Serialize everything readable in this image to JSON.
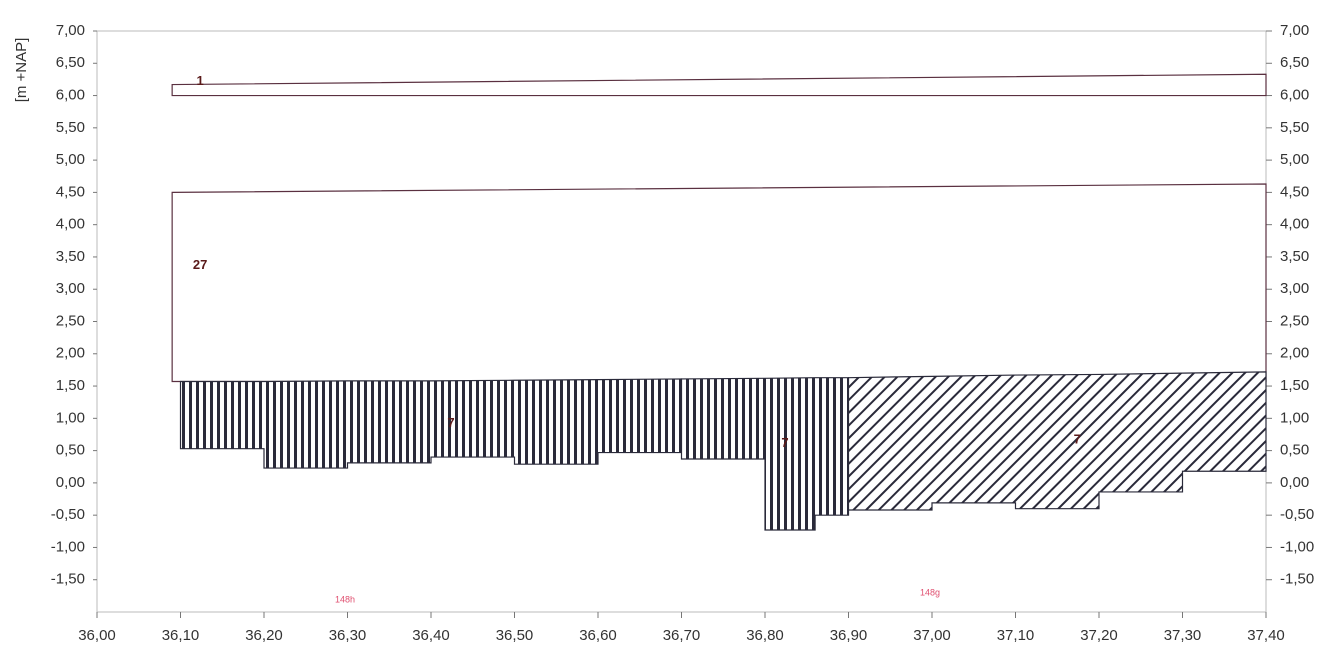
{
  "chart_data": {
    "type": "profile",
    "y_label": "[m +NAP]",
    "xlim": [
      36.0,
      37.4
    ],
    "ylim": [
      -2.0,
      7.0
    ],
    "y2lim": [
      -2.0,
      7.0
    ],
    "xticks": [
      {
        "value": 36.0,
        "label": "36,00"
      },
      {
        "value": 36.1,
        "label": "36,10"
      },
      {
        "value": 36.2,
        "label": "36,20"
      },
      {
        "value": 36.3,
        "label": "36,30"
      },
      {
        "value": 36.4,
        "label": "36,40"
      },
      {
        "value": 36.5,
        "label": "36,50"
      },
      {
        "value": 36.6,
        "label": "36,60"
      },
      {
        "value": 36.7,
        "label": "36,70"
      },
      {
        "value": 36.8,
        "label": "36,80"
      },
      {
        "value": 36.9,
        "label": "36,90"
      },
      {
        "value": 37.0,
        "label": "37,00"
      },
      {
        "value": 37.1,
        "label": "37,10"
      },
      {
        "value": 37.2,
        "label": "37,20"
      },
      {
        "value": 37.3,
        "label": "37,30"
      },
      {
        "value": 37.4,
        "label": "37,40"
      }
    ],
    "yticks": [
      {
        "value": 7.0,
        "label": "7,00"
      },
      {
        "value": 6.5,
        "label": "6,50"
      },
      {
        "value": 6.0,
        "label": "6,00"
      },
      {
        "value": 5.5,
        "label": "5,50"
      },
      {
        "value": 5.0,
        "label": "5,00"
      },
      {
        "value": 4.5,
        "label": "4,50"
      },
      {
        "value": 4.0,
        "label": "4,00"
      },
      {
        "value": 3.5,
        "label": "3,50"
      },
      {
        "value": 3.0,
        "label": "3,00"
      },
      {
        "value": 2.5,
        "label": "2,50"
      },
      {
        "value": 2.0,
        "label": "2,00"
      },
      {
        "value": 1.5,
        "label": "1,50"
      },
      {
        "value": 1.0,
        "label": "1,00"
      },
      {
        "value": 0.5,
        "label": "0,50"
      },
      {
        "value": 0.0,
        "label": "0,00"
      },
      {
        "value": -0.5,
        "label": "-0,50"
      },
      {
        "value": -1.0,
        "label": "-1,00"
      },
      {
        "value": -1.5,
        "label": "-1,50"
      }
    ],
    "y2ticks": [
      {
        "value": 7.0,
        "label": "7,00"
      },
      {
        "value": 6.5,
        "label": "6,50"
      },
      {
        "value": 6.0,
        "label": "6,00"
      },
      {
        "value": 5.5,
        "label": "5,50"
      },
      {
        "value": 5.0,
        "label": "5,00"
      },
      {
        "value": 4.5,
        "label": "4,50"
      },
      {
        "value": 4.0,
        "label": "4,00"
      },
      {
        "value": 3.5,
        "label": "3,50"
      },
      {
        "value": 3.0,
        "label": "3,00"
      },
      {
        "value": 2.5,
        "label": "2,50"
      },
      {
        "value": 2.0,
        "label": "2,00"
      },
      {
        "value": 1.5,
        "label": "1,50"
      },
      {
        "value": 1.0,
        "label": "1,00"
      },
      {
        "value": 0.5,
        "label": "0,50"
      },
      {
        "value": 0.0,
        "label": "0,00"
      },
      {
        "value": -0.5,
        "label": "-0,50"
      },
      {
        "value": -1.0,
        "label": "-1,00"
      },
      {
        "value": -1.5,
        "label": "-1,50"
      }
    ],
    "layers": [
      {
        "label": "1",
        "hatch": "none",
        "x": [
          36.09,
          37.4
        ],
        "top": [
          6.17,
          6.33
        ],
        "bottom": [
          6.0
        ]
      },
      {
        "label": "27",
        "hatch": "none",
        "x": [
          36.09,
          37.4
        ],
        "top": [
          4.5,
          4.63
        ],
        "bottom": [
          1.57
        ]
      },
      {
        "label": "7",
        "hatch": "vertical",
        "x": [
          36.1,
          36.2,
          36.3,
          36.4,
          36.5,
          36.6,
          36.7
        ],
        "top": [
          1.57,
          1.57,
          1.58,
          1.58,
          1.59,
          1.6,
          1.61
        ],
        "bottom": [
          0.53,
          0.23,
          0.31,
          0.4,
          0.29,
          0.47
        ]
      },
      {
        "label": "7",
        "hatch": "vertical",
        "x": [
          36.7,
          36.8,
          36.86,
          36.9
        ],
        "top": [
          1.61,
          1.62,
          1.63,
          1.63
        ],
        "bottom": [
          0.37,
          -0.73,
          -0.5
        ]
      },
      {
        "label": "7",
        "hatch": "diagonal",
        "x": [
          36.9,
          37.0,
          37.1,
          37.2,
          37.3,
          37.4
        ],
        "top": [
          1.63,
          1.65,
          1.67,
          1.68,
          1.7,
          1.72
        ],
        "bottom": [
          -0.42,
          -0.31,
          -0.4,
          -0.14,
          0.18
        ]
      }
    ],
    "annotations": [
      "148h",
      "148g"
    ]
  }
}
